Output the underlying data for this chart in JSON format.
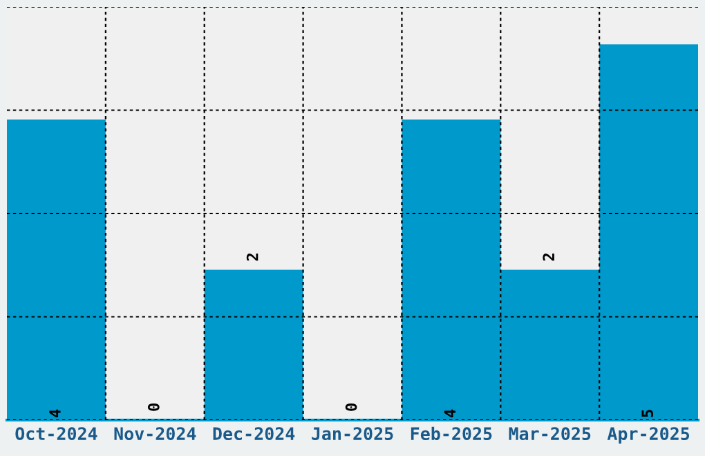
{
  "chart_data": {
    "type": "bar",
    "categories": [
      "Oct-2024",
      "Nov-2024",
      "Dec-2024",
      "Jan-2025",
      "Feb-2025",
      "Mar-2025",
      "Apr-2025"
    ],
    "values": [
      4,
      0,
      2,
      0,
      4,
      2,
      5
    ],
    "color": "#0099cc",
    "ylim": [
      0,
      5.5
    ],
    "yticks": [
      {
        "value": 0,
        "label": null
      },
      {
        "value": 1.375,
        "label": null
      },
      {
        "value": 2.75,
        "label": null
      },
      {
        "value": 4.125,
        "label": null
      },
      {
        "value": 5.5,
        "label": null
      }
    ],
    "tick_labels": "x",
    "grid": true,
    "data_labels": true
  }
}
